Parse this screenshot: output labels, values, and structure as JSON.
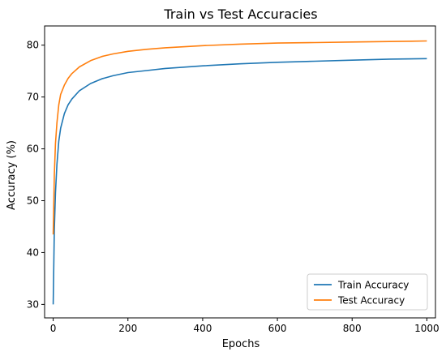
{
  "chart_data": {
    "type": "line",
    "title": "Train vs Test Accuracies",
    "xlabel": "Epochs",
    "ylabel": "Accuracy (%)",
    "xlim": [
      -23,
      1023
    ],
    "ylim": [
      27.4,
      83.7
    ],
    "xticks": [
      0,
      200,
      400,
      600,
      800,
      1000
    ],
    "yticks": [
      30,
      40,
      50,
      60,
      70,
      80
    ],
    "grid": false,
    "legend_position": "lower-right",
    "series": [
      {
        "name": "Train Accuracy",
        "color": "#1f77b4",
        "x": [
          0,
          3,
          6,
          10,
          15,
          20,
          30,
          40,
          50,
          70,
          100,
          130,
          160,
          200,
          250,
          300,
          400,
          500,
          600,
          700,
          800,
          900,
          1000
        ],
        "y": [
          30.0,
          44.5,
          51.5,
          57.0,
          61.5,
          64.0,
          66.8,
          68.5,
          69.6,
          71.2,
          72.6,
          73.5,
          74.1,
          74.7,
          75.1,
          75.5,
          76.0,
          76.4,
          76.7,
          76.9,
          77.1,
          77.3,
          77.4
        ]
      },
      {
        "name": "Test Accuracy",
        "color": "#ff7f0e",
        "x": [
          0,
          3,
          6,
          10,
          15,
          20,
          30,
          40,
          50,
          70,
          100,
          130,
          160,
          200,
          250,
          300,
          400,
          500,
          600,
          700,
          800,
          900,
          1000
        ],
        "y": [
          43.5,
          55.0,
          61.0,
          65.0,
          68.5,
          70.5,
          72.3,
          73.6,
          74.5,
          75.8,
          77.0,
          77.8,
          78.3,
          78.8,
          79.2,
          79.5,
          79.9,
          80.2,
          80.4,
          80.5,
          80.6,
          80.7,
          80.8
        ]
      }
    ]
  }
}
